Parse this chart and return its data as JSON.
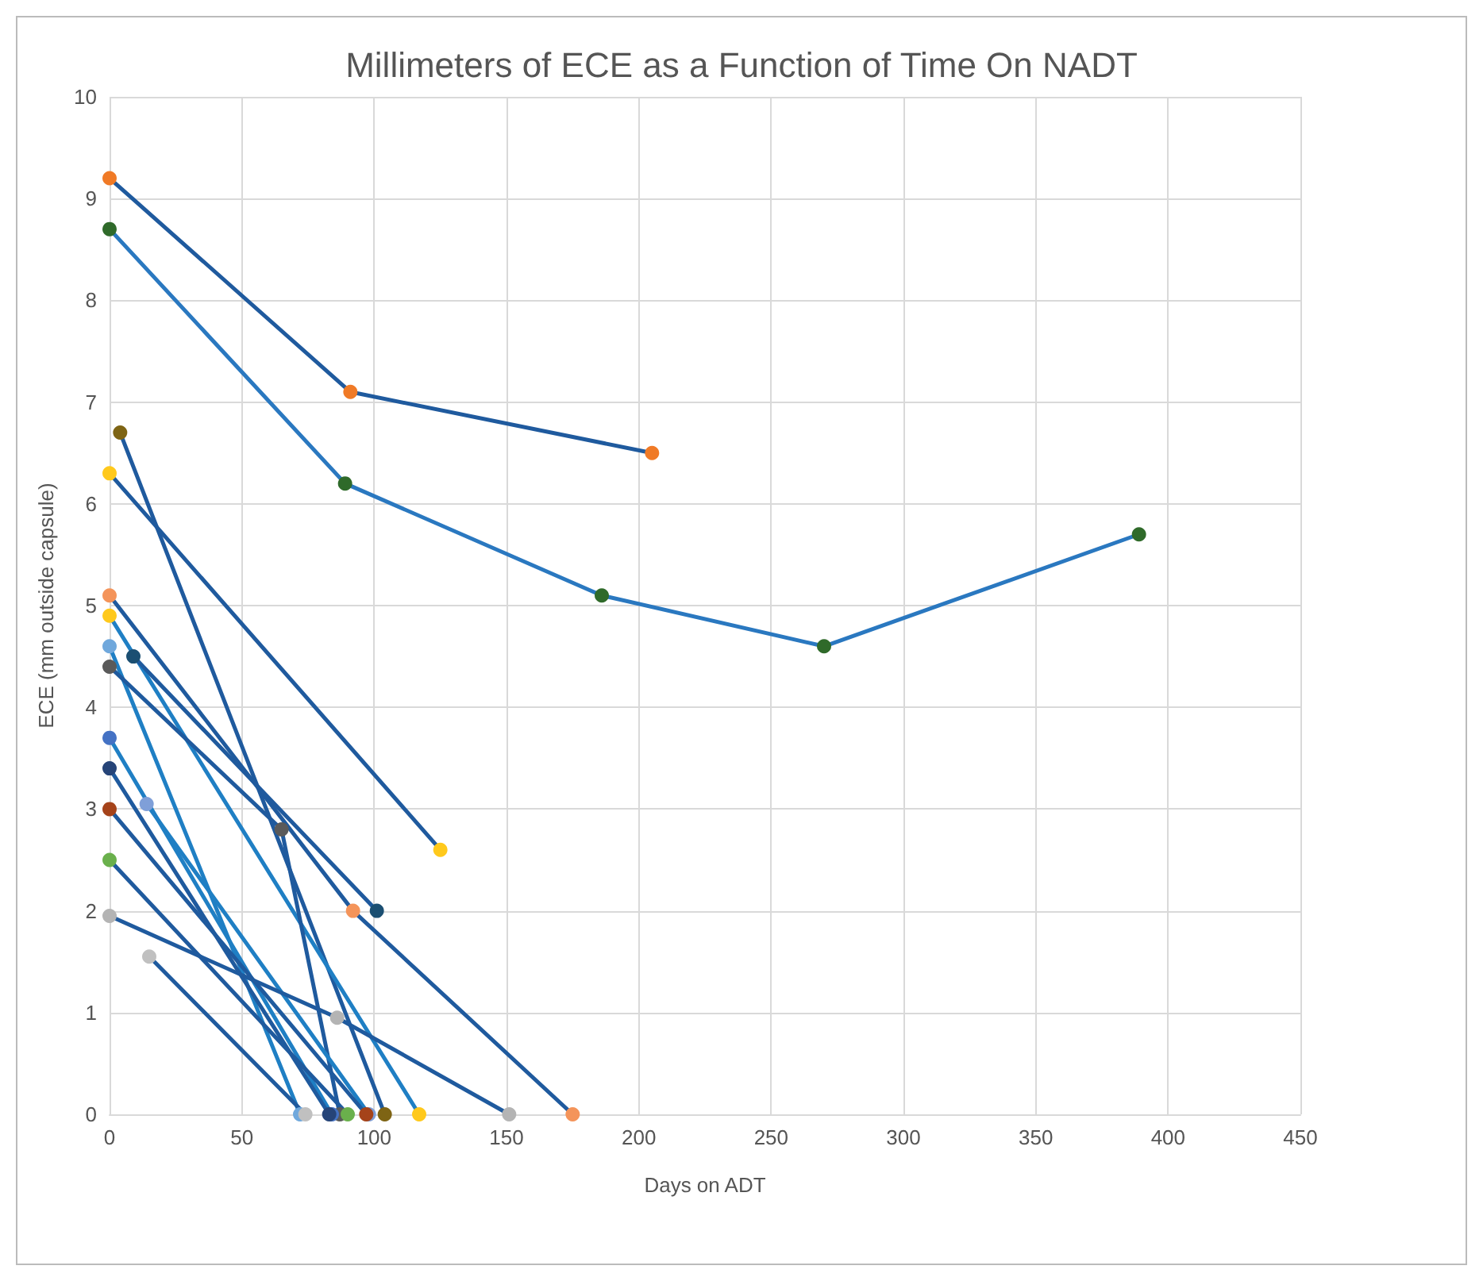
{
  "chart_data": {
    "type": "line",
    "title": "Millimeters of ECE as a Function of Time On NADT",
    "xlabel": "Days on ADT",
    "ylabel": "ECE (mm outside capsule)",
    "xlim": [
      0,
      450
    ],
    "xticks": [
      0,
      50,
      100,
      150,
      200,
      250,
      300,
      350,
      400,
      450
    ],
    "ylim": [
      0,
      10
    ],
    "yticks": [
      0,
      1,
      2,
      3,
      4,
      5,
      6,
      7,
      8,
      9,
      10
    ],
    "grid": true,
    "marker": "circle",
    "line_style": "solid",
    "series": [
      {
        "color": "#1f5a9e",
        "x": [
          0,
          91,
          205
        ],
        "values": [
          9.2,
          7.1,
          6.5
        ],
        "colors": [
          "#f07a26",
          "#f07a26",
          "#f07a26"
        ]
      },
      {
        "color": "#2a78c0",
        "x": [
          0,
          89,
          186,
          270,
          389
        ],
        "values": [
          8.7,
          6.2,
          5.1,
          4.6,
          5.7
        ],
        "colors": [
          "#2f6a2a",
          "#2f6a2a",
          "#2f6a2a",
          "#2f6a2a",
          "#2f6a2a"
        ]
      },
      {
        "color": "#1f5a9e",
        "x": [
          4,
          104
        ],
        "values": [
          6.7,
          0
        ],
        "colors": [
          "#7e6414",
          "#7e6414"
        ]
      },
      {
        "color": "#1f5a9e",
        "x": [
          0,
          125
        ],
        "values": [
          6.3,
          2.6
        ],
        "colors": [
          "#ffc91c",
          "#ffc91c"
        ]
      },
      {
        "color": "#1f5a9e",
        "x": [
          0,
          92,
          175
        ],
        "values": [
          5.1,
          2.0,
          0
        ],
        "colors": [
          "#f4945a",
          "#f4945a",
          "#f4945a"
        ]
      },
      {
        "color": "#1f7fc4",
        "x": [
          0,
          117
        ],
        "values": [
          4.9,
          0
        ],
        "colors": [
          "#ffc91c",
          "#ffc91c"
        ]
      },
      {
        "color": "#1f7fc4",
        "x": [
          0,
          72
        ],
        "values": [
          4.6,
          0
        ],
        "colors": [
          "#70a8dc",
          "#70a8dc"
        ]
      },
      {
        "color": "#1f5a9e",
        "x": [
          9,
          101
        ],
        "values": [
          4.5,
          2.0
        ],
        "colors": [
          "#1b4f72",
          "#1b4f72"
        ]
      },
      {
        "color": "#1f5a9e",
        "x": [
          0,
          65,
          87
        ],
        "values": [
          4.4,
          2.8,
          0
        ],
        "colors": [
          "#5a5a5a",
          "#5a5a5a",
          "#5a5a5a"
        ]
      },
      {
        "color": "#1f7fc4",
        "x": [
          0,
          84
        ],
        "values": [
          3.7,
          0
        ],
        "colors": [
          "#4472c4",
          "#4472c4"
        ]
      },
      {
        "color": "#1f5a9e",
        "x": [
          0,
          83
        ],
        "values": [
          3.4,
          0
        ],
        "colors": [
          "#264478",
          "#264478"
        ]
      },
      {
        "color": "#1f7fc4",
        "x": [
          14,
          98
        ],
        "values": [
          3.05,
          0
        ],
        "colors": [
          "#7f9fd8",
          "#7f9fd8"
        ]
      },
      {
        "color": "#1f5a9e",
        "x": [
          0,
          97
        ],
        "values": [
          3.0,
          0
        ],
        "colors": [
          "#a5431a",
          "#a5431a"
        ]
      },
      {
        "color": "#1f5a9e",
        "x": [
          0,
          90
        ],
        "values": [
          2.5,
          0
        ],
        "colors": [
          "#6ab04c",
          "#6ab04c"
        ]
      },
      {
        "color": "#1f5a9e",
        "x": [
          0,
          86,
          151
        ],
        "values": [
          1.95,
          0.95,
          0
        ],
        "colors": [
          "#b4b4b4",
          "#b4b4b4",
          "#b4b4b4"
        ]
      },
      {
        "color": "#1f5a9e",
        "x": [
          15,
          74
        ],
        "values": [
          1.55,
          0
        ],
        "colors": [
          "#c0c0c0",
          "#c0c0c0"
        ]
      }
    ]
  }
}
